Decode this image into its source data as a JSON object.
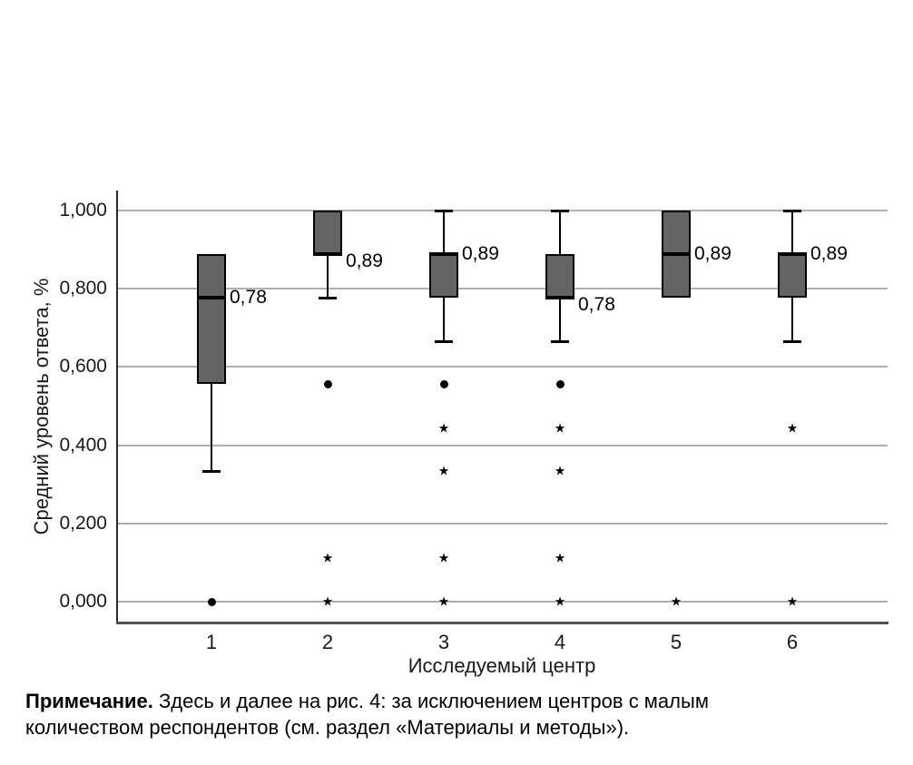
{
  "note": {
    "label": "Примечание.",
    "line1": " Здесь и далее на рис. 4: за исключением центров с малым",
    "line2": "количеством респондентов (см. раздел «Материалы и методы»)."
  },
  "chart_data": {
    "type": "boxplot",
    "title": "",
    "xlabel": "Исследуемый центр",
    "ylabel": "Средний уровень ответа, %",
    "ylim": [
      0,
      1
    ],
    "grid": "horizontal",
    "legend": "none",
    "yticks": [
      {
        "value": 0.0,
        "label": "0,000"
      },
      {
        "value": 0.2,
        "label": "0,200"
      },
      {
        "value": 0.4,
        "label": "0,400"
      },
      {
        "value": 0.6,
        "label": "0,600"
      },
      {
        "value": 0.8,
        "label": "0,800"
      },
      {
        "value": 1.0,
        "label": "1,000"
      }
    ],
    "categories": [
      "1",
      "2",
      "3",
      "4",
      "5",
      "6"
    ],
    "boxes": [
      {
        "category": "1",
        "whisker_low": 0.333,
        "q1": 0.556,
        "median": 0.778,
        "q3": 0.889,
        "whisker_high": null,
        "median_label": "0,78",
        "dot_outliers": [
          0.0
        ],
        "star_outliers": []
      },
      {
        "category": "2",
        "whisker_low": 0.778,
        "q1": 0.889,
        "median": 0.889,
        "q3": 1.0,
        "whisker_high": null,
        "median_label": "0,89",
        "dot_outliers": [
          0.556
        ],
        "star_outliers": [
          0.111,
          0.0
        ]
      },
      {
        "category": "3",
        "whisker_low": 0.667,
        "q1": 0.778,
        "median": 0.889,
        "q3": 0.889,
        "whisker_high": 1.0,
        "median_label": "0,89",
        "dot_outliers": [
          0.556
        ],
        "star_outliers": [
          0.444,
          0.333,
          0.111,
          0.0
        ]
      },
      {
        "category": "4",
        "whisker_low": 0.667,
        "q1": 0.778,
        "median": 0.778,
        "q3": 0.889,
        "whisker_high": 1.0,
        "median_label": "0,78",
        "dot_outliers": [
          0.556
        ],
        "star_outliers": [
          0.444,
          0.333,
          0.111,
          0.0
        ]
      },
      {
        "category": "5",
        "whisker_low": null,
        "q1": 0.778,
        "median": 0.889,
        "q3": 1.0,
        "whisker_high": null,
        "median_label": "0,89",
        "dot_outliers": [],
        "star_outliers": [
          0.0
        ]
      },
      {
        "category": "6",
        "whisker_low": 0.667,
        "q1": 0.778,
        "median": 0.889,
        "q3": 0.889,
        "whisker_high": 1.0,
        "median_label": "0,89",
        "dot_outliers": [],
        "star_outliers": [
          0.444,
          0.0
        ]
      }
    ],
    "colors": {
      "box_fill": "#646464",
      "box_border": "#000000",
      "median": "#000000",
      "whisker": "#000000",
      "gridline": "#b0b0b0",
      "y_axis": "#2b2b2b",
      "x_axis": "#4f4f4f",
      "text": "#111111"
    }
  }
}
